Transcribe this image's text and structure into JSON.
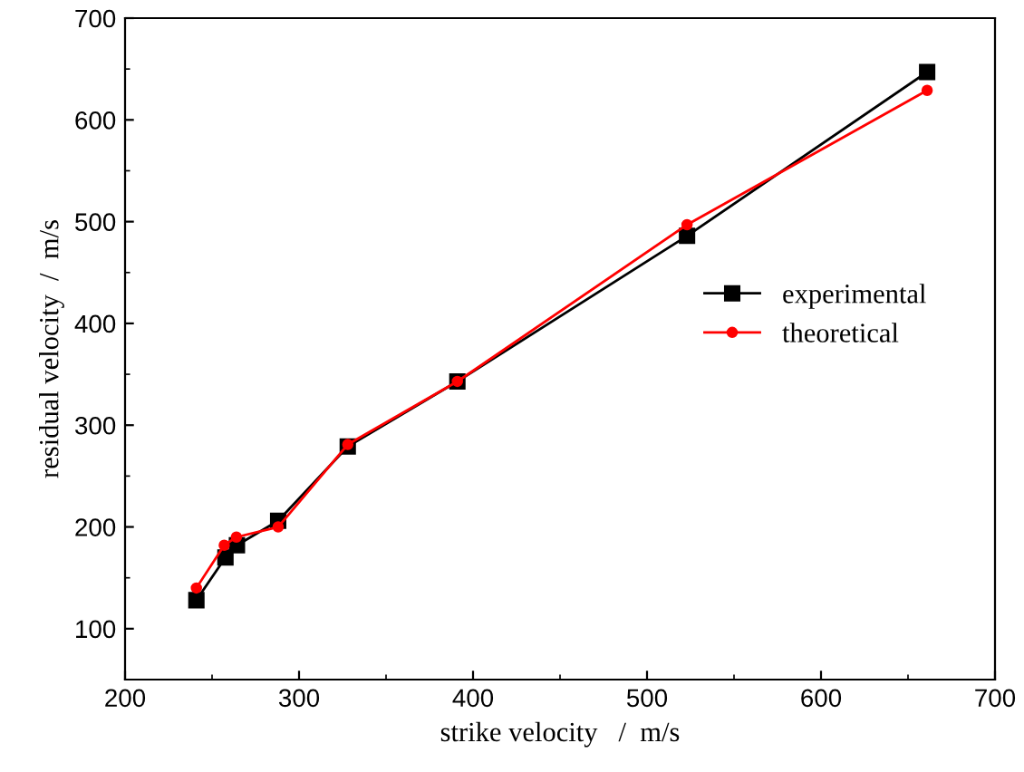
{
  "chart_data": {
    "type": "line",
    "xlabel": "strike velocity   /  m/s",
    "ylabel": "residual velocity  /  m/s",
    "xlim": [
      200,
      700
    ],
    "xticks": [
      200,
      300,
      400,
      500,
      600,
      700
    ],
    "ylim": [
      50,
      700
    ],
    "yticks": [
      100,
      200,
      300,
      400,
      500,
      600,
      700
    ],
    "legend": "right",
    "grid": false,
    "series": [
      {
        "name": "experimental",
        "color": "#000000",
        "marker": "square",
        "x": [
          241,
          257.7,
          264.3,
          288,
          328,
          391,
          523,
          661
        ],
        "values": [
          128,
          170,
          182,
          206,
          279,
          343,
          486,
          647
        ]
      },
      {
        "name": "theoretical",
        "color": "#ff0000",
        "marker": "circle",
        "x": [
          241,
          257,
          264,
          288,
          328,
          391,
          523,
          661
        ],
        "values": [
          140,
          182,
          190,
          200,
          281,
          343,
          497,
          629
        ]
      }
    ]
  }
}
